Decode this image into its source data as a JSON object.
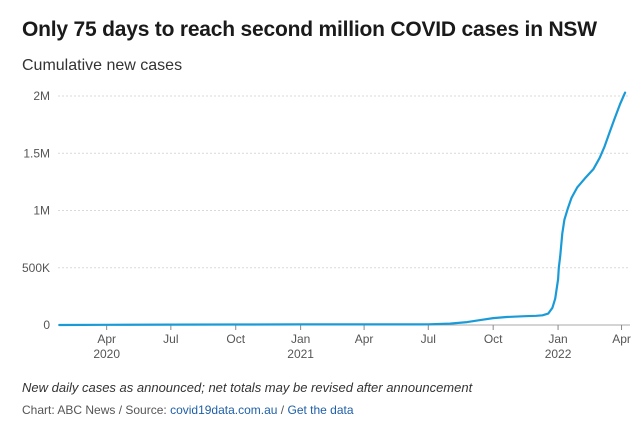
{
  "title": "Only 75 days to reach second million COVID cases in NSW",
  "footer": {
    "note": "New daily cases as announced; net totals may be revised after announcement",
    "source_prefix": "Chart: ABC News / Source: ",
    "source_link": "covid19data.com.au",
    "separator": " / ",
    "data_link": "Get the data"
  },
  "colors": {
    "line": "#1a9bd7",
    "grid": "#d9d9d9",
    "axis": "#555555"
  },
  "chart_data": {
    "type": "line",
    "title": "Only 75 days to reach second million COVID cases in NSW",
    "ylabel": "Cumulative new cases",
    "xlabel": "",
    "ylim": [
      0,
      2000000
    ],
    "xlim": [
      "2020-01-23",
      "2022-04-13"
    ],
    "grid": true,
    "y_ticks": [
      {
        "value": 0,
        "label": "0"
      },
      {
        "value": 500000,
        "label": "500K"
      },
      {
        "value": 1000000,
        "label": "1M"
      },
      {
        "value": 1500000,
        "label": "1.5M"
      },
      {
        "value": 2000000,
        "label": "2M"
      }
    ],
    "x_ticks": [
      {
        "date": "2020-04-01",
        "label": "Apr",
        "sub": "2020"
      },
      {
        "date": "2020-07-01",
        "label": "Jul",
        "sub": ""
      },
      {
        "date": "2020-10-01",
        "label": "Oct",
        "sub": ""
      },
      {
        "date": "2021-01-01",
        "label": "Jan",
        "sub": "2021"
      },
      {
        "date": "2021-04-01",
        "label": "Apr",
        "sub": ""
      },
      {
        "date": "2021-07-01",
        "label": "Jul",
        "sub": ""
      },
      {
        "date": "2021-10-01",
        "label": "Oct",
        "sub": ""
      },
      {
        "date": "2022-01-01",
        "label": "Jan",
        "sub": "2022"
      },
      {
        "date": "2022-04-01",
        "label": "Apr",
        "sub": ""
      }
    ],
    "series": [
      {
        "points": [
          [
            "2020-01-25",
            0
          ],
          [
            "2020-03-31",
            2000
          ],
          [
            "2020-07-01",
            3300
          ],
          [
            "2020-10-01",
            4200
          ],
          [
            "2021-01-01",
            5000
          ],
          [
            "2021-04-01",
            5200
          ],
          [
            "2021-06-20",
            5500
          ],
          [
            "2021-07-01",
            6500
          ],
          [
            "2021-08-01",
            12000
          ],
          [
            "2021-08-25",
            25000
          ],
          [
            "2021-09-15",
            45000
          ],
          [
            "2021-10-01",
            60000
          ],
          [
            "2021-10-20",
            70000
          ],
          [
            "2021-11-15",
            77000
          ],
          [
            "2021-12-01",
            80000
          ],
          [
            "2021-12-10",
            85000
          ],
          [
            "2021-12-18",
            100000
          ],
          [
            "2021-12-24",
            150000
          ],
          [
            "2021-12-28",
            230000
          ],
          [
            "2022-01-01",
            400000
          ],
          [
            "2022-01-02",
            500000
          ],
          [
            "2022-01-04",
            600000
          ],
          [
            "2022-01-07",
            800000
          ],
          [
            "2022-01-10",
            920000
          ],
          [
            "2022-01-15",
            1020000
          ],
          [
            "2022-01-20",
            1110000
          ],
          [
            "2022-01-28",
            1200000
          ],
          [
            "2022-02-08",
            1280000
          ],
          [
            "2022-02-20",
            1360000
          ],
          [
            "2022-03-01",
            1460000
          ],
          [
            "2022-03-08",
            1560000
          ],
          [
            "2022-03-15",
            1680000
          ],
          [
            "2022-03-22",
            1800000
          ],
          [
            "2022-03-30",
            1930000
          ],
          [
            "2022-04-06",
            2030000
          ]
        ]
      }
    ]
  }
}
